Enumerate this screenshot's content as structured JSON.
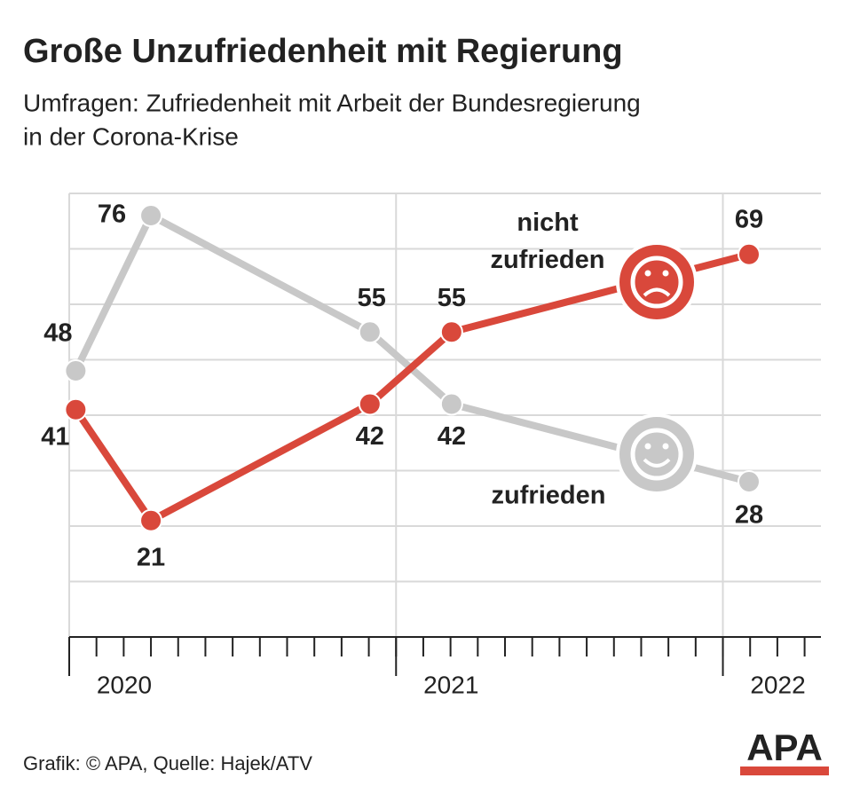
{
  "chart_data": {
    "type": "line",
    "title": "Große Unzufriedenheit mit Regierung",
    "subtitle": [
      "Umfragen: Zufriedenheit mit Arbeit der Bundesregierung",
      "in der Corona-Krise"
    ],
    "x": [
      2020.02,
      2020.25,
      2020.92,
      2021.17,
      2022.08
    ],
    "series": [
      {
        "name": "nicht zufrieden",
        "color": "#d9483b",
        "values": [
          41,
          21,
          42,
          55,
          69
        ]
      },
      {
        "name": "zufrieden",
        "color": "#c8c8c8",
        "values": [
          48,
          76,
          55,
          42,
          28
        ]
      }
    ],
    "xlim": [
      2020,
      2022.3
    ],
    "xticks": [
      2020,
      2021,
      2022
    ],
    "ylim": [
      0,
      80
    ],
    "yticks": [
      0,
      10,
      20,
      30,
      40,
      50,
      60,
      70,
      80
    ],
    "grid": true,
    "source": "Grafik: © APA, Quelle: Hajek/ATV",
    "logo": "APA"
  }
}
